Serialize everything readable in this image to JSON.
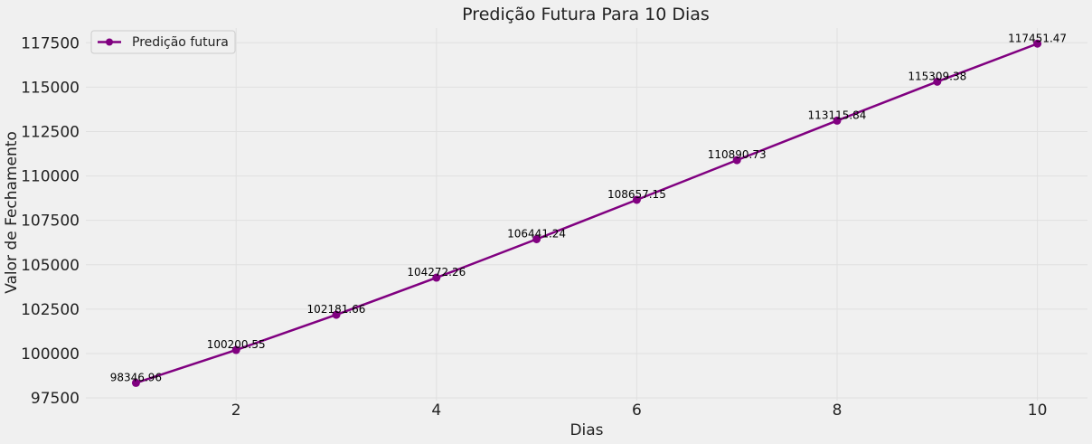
{
  "chart_data": {
    "type": "line",
    "title": "Predição Futura Para 10 Dias",
    "xlabel": "Dias",
    "ylabel": "Valor de Fechamento",
    "x": [
      1,
      2,
      3,
      4,
      5,
      6,
      7,
      8,
      9,
      10
    ],
    "series": [
      {
        "name": "Predição futura",
        "values": [
          98346.96,
          100200.55,
          102181.66,
          104272.26,
          106441.24,
          108657.15,
          110890.73,
          113115.84,
          115309.38,
          117451.47
        ],
        "labels": [
          "98346.96",
          "100200.55",
          "102181.66",
          "104272.26",
          "106441.24",
          "108657.15",
          "110890.73",
          "113115.84",
          "115309.38",
          "117451.47"
        ],
        "color": "#800080",
        "marker": "circle"
      }
    ],
    "xticks": [
      2,
      4,
      6,
      8,
      10
    ],
    "xtick_labels": [
      "2",
      "4",
      "6",
      "8",
      "10"
    ],
    "yticks": [
      97500,
      100000,
      102500,
      105000,
      107500,
      110000,
      112500,
      115000,
      117500
    ],
    "ytick_labels": [
      "97500",
      "100000",
      "102500",
      "105000",
      "107500",
      "110000",
      "112500",
      "115000",
      "117500"
    ],
    "xlim": [
      0.5,
      10.5
    ],
    "ylim": [
      97350,
      118330
    ],
    "grid": true,
    "legend_position": "top-left",
    "background": "#f0f0f0",
    "grid_color": "#e0e0e0"
  }
}
